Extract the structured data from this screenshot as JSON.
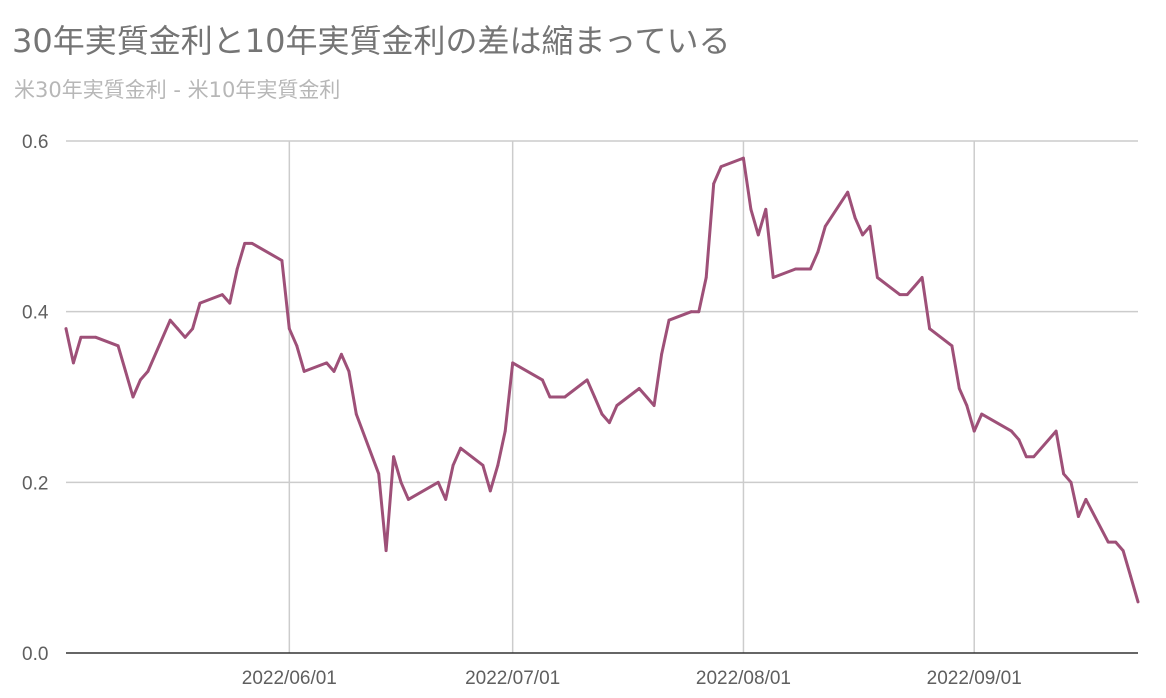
{
  "chart_data": {
    "type": "line",
    "title": "30年実質金利と10年実質金利の差は縮まっている",
    "subtitle": "米30年実質金利 - 米10年実質金利",
    "ylim": [
      0,
      0.6
    ],
    "yticks": [
      "0.0",
      "0.2",
      "0.4",
      "0.6"
    ],
    "xlim": [
      "2022-05-02",
      "2022-09-23"
    ],
    "xticks": [
      {
        "date": "2022-06-01",
        "label": "2022/06/01"
      },
      {
        "date": "2022-07-01",
        "label": "2022/07/01"
      },
      {
        "date": "2022-08-01",
        "label": "2022/08/01"
      },
      {
        "date": "2022-09-01",
        "label": "2022/09/01"
      }
    ],
    "grid": true,
    "colors": {
      "line": "#9e5078",
      "grid": "#cccccc",
      "axis": "#333333"
    },
    "series": [
      {
        "x": [
          "2022-05-02",
          "2022-05-03",
          "2022-05-04",
          "2022-05-06",
          "2022-05-09",
          "2022-05-10",
          "2022-05-11",
          "2022-05-12",
          "2022-05-13",
          "2022-05-16",
          "2022-05-17",
          "2022-05-18",
          "2022-05-19",
          "2022-05-20",
          "2022-05-23",
          "2022-05-24",
          "2022-05-25",
          "2022-05-26",
          "2022-05-27",
          "2022-05-31",
          "2022-06-01",
          "2022-06-02",
          "2022-06-03",
          "2022-06-06",
          "2022-06-07",
          "2022-06-08",
          "2022-06-09",
          "2022-06-10",
          "2022-06-13",
          "2022-06-14",
          "2022-06-15",
          "2022-06-16",
          "2022-06-17",
          "2022-06-21",
          "2022-06-22",
          "2022-06-23",
          "2022-06-24",
          "2022-06-27",
          "2022-06-28",
          "2022-06-29",
          "2022-06-30",
          "2022-07-01",
          "2022-07-05",
          "2022-07-06",
          "2022-07-07",
          "2022-07-08",
          "2022-07-11",
          "2022-07-12",
          "2022-07-13",
          "2022-07-14",
          "2022-07-15",
          "2022-07-18",
          "2022-07-19",
          "2022-07-20",
          "2022-07-21",
          "2022-07-22",
          "2022-07-25",
          "2022-07-26",
          "2022-07-27",
          "2022-07-28",
          "2022-07-29",
          "2022-08-01",
          "2022-08-02",
          "2022-08-03",
          "2022-08-04",
          "2022-08-05",
          "2022-08-08",
          "2022-08-09",
          "2022-08-10",
          "2022-08-11",
          "2022-08-12",
          "2022-08-15",
          "2022-08-16",
          "2022-08-17",
          "2022-08-18",
          "2022-08-19",
          "2022-08-22",
          "2022-08-23",
          "2022-08-24",
          "2022-08-25",
          "2022-08-26",
          "2022-08-29",
          "2022-08-30",
          "2022-08-31",
          "2022-09-01",
          "2022-09-02",
          "2022-09-06",
          "2022-09-07",
          "2022-09-08",
          "2022-09-09",
          "2022-09-12",
          "2022-09-13",
          "2022-09-14",
          "2022-09-15",
          "2022-09-16",
          "2022-09-19",
          "2022-09-20",
          "2022-09-21",
          "2022-09-22",
          "2022-09-23"
        ],
        "values": [
          0.38,
          0.34,
          0.37,
          0.37,
          0.36,
          0.33,
          0.3,
          0.32,
          0.33,
          0.39,
          0.38,
          0.37,
          0.38,
          0.41,
          0.42,
          0.41,
          0.45,
          0.48,
          0.48,
          0.46,
          0.38,
          0.36,
          0.33,
          0.34,
          0.33,
          0.35,
          0.33,
          0.28,
          0.21,
          0.12,
          0.23,
          0.2,
          0.18,
          0.2,
          0.18,
          0.22,
          0.24,
          0.22,
          0.19,
          0.22,
          0.26,
          0.34,
          0.32,
          0.3,
          0.3,
          0.3,
          0.32,
          0.3,
          0.28,
          0.27,
          0.29,
          0.31,
          0.3,
          0.29,
          0.35,
          0.39,
          0.4,
          0.4,
          0.44,
          0.55,
          0.57,
          0.58,
          0.52,
          0.49,
          0.52,
          0.44,
          0.45,
          0.45,
          0.45,
          0.47,
          0.5,
          0.54,
          0.51,
          0.49,
          0.5,
          0.44,
          0.42,
          0.42,
          0.43,
          0.44,
          0.38,
          0.36,
          0.31,
          0.29,
          0.26,
          0.28,
          0.26,
          0.25,
          0.23,
          0.23,
          0.26,
          0.21,
          0.2,
          0.16,
          0.18,
          0.13,
          0.13,
          0.12,
          0.09,
          0.06
        ]
      }
    ]
  }
}
